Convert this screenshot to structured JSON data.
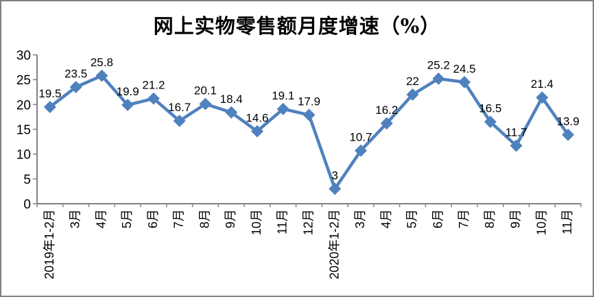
{
  "title": "网上实物零售额月度增速（%）",
  "chart_data": {
    "type": "line",
    "title": "网上实物零售额月度增速（%）",
    "categories": [
      "2019年1-2月",
      "3月",
      "4月",
      "5月",
      "6月",
      "7月",
      "8月",
      "9月",
      "10月",
      "11月",
      "12月",
      "2020年1-2月",
      "3月",
      "4月",
      "5月",
      "6月",
      "7月",
      "8月",
      "9月",
      "10月",
      "11月"
    ],
    "values": [
      19.5,
      23.5,
      25.8,
      19.9,
      21.2,
      16.7,
      20.1,
      18.4,
      14.6,
      19.1,
      17.9,
      3,
      10.7,
      16.2,
      22,
      25.2,
      24.5,
      16.5,
      11.7,
      21.4,
      13.9
    ],
    "yticks": [
      0,
      5,
      10,
      15,
      20,
      25,
      30
    ],
    "ylim": [
      0,
      30
    ],
    "xlabel": "",
    "ylabel": "",
    "grid": false,
    "legend": "none",
    "marker": "diamond",
    "data_labels": "above",
    "series_color": "#4F81BD",
    "axis_color": "#808080",
    "text_color": "#000000",
    "background_color": "#FFFFFF",
    "border_color": "#808080"
  }
}
